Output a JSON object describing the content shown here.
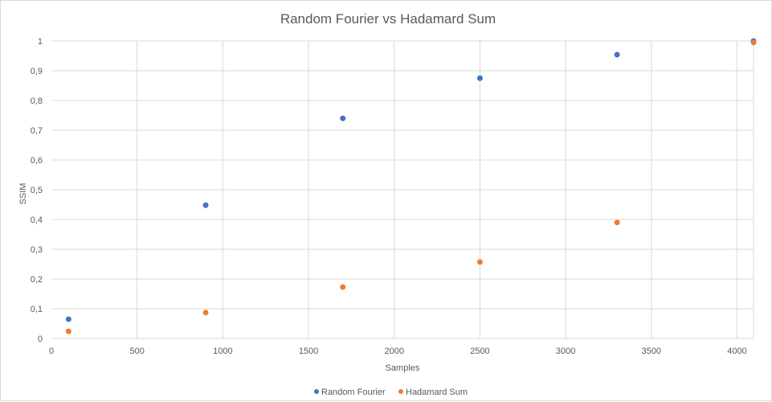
{
  "chart_data": {
    "type": "scatter",
    "title": "Random Fourier vs Hadamard Sum",
    "xlabel": "Samples",
    "ylabel": "SSIM",
    "xlim": [
      0,
      4096
    ],
    "ylim": [
      0,
      1
    ],
    "x_ticks": [
      "0",
      "500",
      "1000",
      "1500",
      "2000",
      "2500",
      "3000",
      "3500",
      "4000"
    ],
    "y_ticks": [
      "0",
      "0,1",
      "0,2",
      "0,3",
      "0,4",
      "0,5",
      "0,6",
      "0,7",
      "0,8",
      "0,9",
      "1"
    ],
    "grid": true,
    "legend_position": "bottom",
    "series": [
      {
        "name": "Random Fourier",
        "color": "#4472C4",
        "points": [
          {
            "x": 100,
            "y": 0.065
          },
          {
            "x": 900,
            "y": 0.448
          },
          {
            "x": 1700,
            "y": 0.74
          },
          {
            "x": 2500,
            "y": 0.875
          },
          {
            "x": 3300,
            "y": 0.954
          },
          {
            "x": 4096,
            "y": 1.0
          }
        ]
      },
      {
        "name": "Hadamard Sum",
        "color": "#ED7D31",
        "points": [
          {
            "x": 100,
            "y": 0.024
          },
          {
            "x": 900,
            "y": 0.087
          },
          {
            "x": 1700,
            "y": 0.173
          },
          {
            "x": 2500,
            "y": 0.257
          },
          {
            "x": 3300,
            "y": 0.39
          },
          {
            "x": 4096,
            "y": 0.995
          }
        ]
      }
    ]
  }
}
